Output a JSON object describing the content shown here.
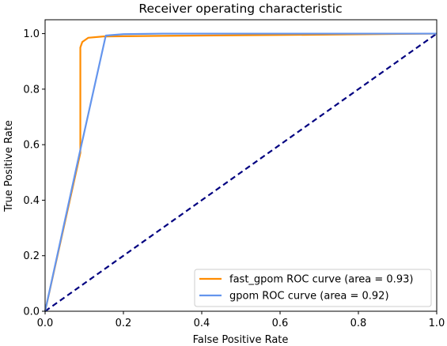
{
  "chart_data": {
    "type": "line",
    "title": "Receiver operating characteristic",
    "xlabel": "False Positive Rate",
    "ylabel": "True Positive Rate",
    "xlim": [
      0,
      1
    ],
    "ylim": [
      0,
      1.05
    ],
    "xticks": [
      0.0,
      0.2,
      0.4,
      0.6,
      0.8,
      1.0
    ],
    "xtick_labels": [
      "0.0",
      "0.2",
      "0.4",
      "0.6",
      "0.8",
      "1.0"
    ],
    "yticks": [
      0.0,
      0.2,
      0.4,
      0.6,
      0.8,
      1.0
    ],
    "ytick_labels": [
      "0.0",
      "0.2",
      "0.4",
      "0.6",
      "0.8",
      "1.0"
    ],
    "grid": false,
    "legend_position": "lower-right",
    "series": [
      {
        "name": "fast_gpom ROC curve (area = 0.93)",
        "color": "#ff8c00",
        "line_style": "solid",
        "x": [
          0.0,
          0.09,
          0.09,
          0.095,
          0.11,
          0.15,
          0.3,
          0.6,
          1.0
        ],
        "y": [
          0.0,
          0.57,
          0.95,
          0.97,
          0.985,
          0.99,
          0.992,
          0.995,
          1.0
        ]
      },
      {
        "name": "gpom ROC curve (area = 0.92)",
        "color": "#6495ed",
        "line_style": "solid",
        "x": [
          0.0,
          0.085,
          0.155,
          0.2,
          0.3,
          1.0
        ],
        "y": [
          0.0,
          0.55,
          0.993,
          0.998,
          1.0,
          1.0
        ]
      },
      {
        "name": "chance",
        "show_in_legend": false,
        "color": "#000080",
        "line_style": "dashed",
        "x": [
          0.0,
          1.0
        ],
        "y": [
          0.0,
          1.0
        ]
      }
    ]
  }
}
